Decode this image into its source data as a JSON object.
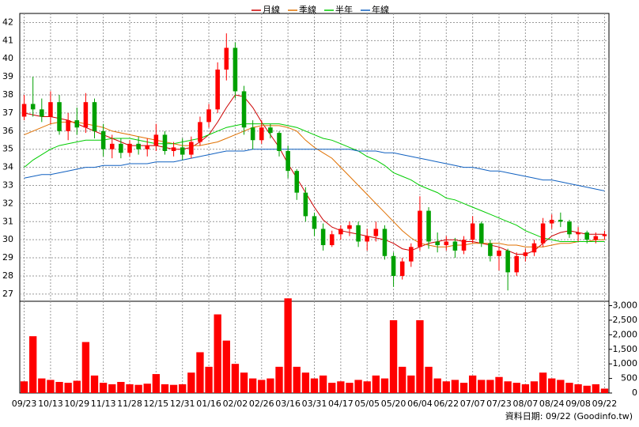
{
  "chart_data": {
    "type": "candlestick",
    "note": "資料日期: 09/22 (Goodinfo.tw)",
    "categories": [
      "09/23",
      null,
      null,
      "10/13",
      null,
      null,
      "10/29",
      null,
      null,
      "11/13",
      null,
      null,
      "11/28",
      null,
      null,
      "12/15",
      null,
      null,
      "12/31",
      null,
      null,
      "01/16",
      null,
      null,
      "02/02",
      null,
      null,
      "02/26",
      null,
      null,
      "03/16",
      null,
      null,
      "03/31",
      null,
      null,
      "04/17",
      null,
      null,
      "05/05",
      null,
      null,
      "05/20",
      null,
      null,
      "06/04",
      null,
      null,
      "06/22",
      null,
      null,
      "07/07",
      null,
      null,
      "07/23",
      null,
      null,
      "08/07",
      null,
      null,
      "08/24",
      null,
      null,
      "09/08",
      null,
      null,
      "09/22"
    ],
    "ohlc": [
      [
        36.8,
        38.0,
        36.6,
        37.5
      ],
      [
        37.5,
        39.0,
        36.8,
        37.2
      ],
      [
        37.2,
        37.8,
        36.5,
        36.8
      ],
      [
        36.8,
        38.2,
        36.4,
        37.6
      ],
      [
        37.6,
        38.0,
        35.8,
        36.0
      ],
      [
        36.0,
        37.0,
        35.5,
        36.6
      ],
      [
        36.6,
        37.3,
        35.8,
        36.2
      ],
      [
        36.2,
        38.1,
        35.9,
        37.6
      ],
      [
        37.6,
        37.8,
        35.6,
        36.0
      ],
      [
        36.0,
        36.4,
        34.6,
        35.0
      ],
      [
        35.0,
        35.8,
        34.5,
        35.3
      ],
      [
        35.3,
        35.6,
        34.5,
        34.8
      ],
      [
        34.8,
        35.5,
        34.6,
        35.3
      ],
      [
        35.3,
        35.7,
        34.7,
        35.0
      ],
      [
        35.0,
        35.6,
        34.6,
        35.2
      ],
      [
        35.2,
        36.4,
        34.9,
        35.8
      ],
      [
        35.8,
        36.0,
        34.7,
        34.9
      ],
      [
        34.9,
        35.4,
        34.6,
        35.1
      ],
      [
        35.1,
        35.6,
        34.4,
        34.7
      ],
      [
        34.7,
        35.7,
        34.5,
        35.4
      ],
      [
        35.4,
        36.8,
        35.2,
        36.5
      ],
      [
        36.5,
        37.5,
        36.2,
        37.2
      ],
      [
        37.2,
        39.8,
        37.0,
        39.4
      ],
      [
        39.4,
        41.4,
        38.8,
        40.6
      ],
      [
        40.6,
        40.9,
        37.8,
        38.2
      ],
      [
        38.2,
        38.5,
        35.8,
        36.2
      ],
      [
        36.2,
        36.6,
        35.0,
        35.5
      ],
      [
        35.5,
        36.6,
        35.3,
        36.2
      ],
      [
        36.2,
        36.4,
        35.6,
        35.9
      ],
      [
        35.9,
        36.0,
        34.6,
        34.9
      ],
      [
        34.9,
        35.2,
        33.4,
        33.8
      ],
      [
        33.8,
        33.9,
        32.2,
        32.6
      ],
      [
        32.6,
        32.9,
        31.0,
        31.3
      ],
      [
        31.3,
        31.5,
        30.2,
        30.6
      ],
      [
        30.6,
        30.9,
        29.4,
        29.7
      ],
      [
        29.7,
        30.5,
        29.6,
        30.3
      ],
      [
        30.3,
        30.8,
        30.0,
        30.6
      ],
      [
        30.6,
        31.0,
        30.2,
        30.8
      ],
      [
        30.8,
        31.0,
        29.6,
        29.9
      ],
      [
        29.9,
        30.6,
        29.4,
        30.2
      ],
      [
        30.2,
        31.0,
        29.9,
        30.6
      ],
      [
        30.6,
        30.8,
        28.9,
        29.1
      ],
      [
        29.1,
        29.3,
        27.4,
        28.0
      ],
      [
        28.0,
        29.0,
        27.8,
        28.8
      ],
      [
        28.8,
        29.8,
        28.5,
        29.6
      ],
      [
        29.6,
        32.4,
        29.4,
        31.6
      ],
      [
        31.6,
        31.8,
        29.5,
        29.9
      ],
      [
        29.9,
        30.4,
        29.3,
        29.7
      ],
      [
        29.7,
        30.2,
        29.4,
        29.9
      ],
      [
        29.9,
        30.1,
        29.0,
        29.4
      ],
      [
        29.4,
        30.2,
        29.2,
        30.0
      ],
      [
        30.0,
        31.3,
        29.8,
        30.9
      ],
      [
        30.9,
        31.0,
        29.6,
        29.8
      ],
      [
        29.8,
        30.0,
        28.8,
        29.1
      ],
      [
        29.1,
        29.6,
        28.3,
        29.4
      ],
      [
        29.4,
        29.5,
        27.2,
        28.2
      ],
      [
        28.2,
        29.3,
        28.0,
        29.1
      ],
      [
        29.1,
        29.5,
        28.8,
        29.3
      ],
      [
        29.3,
        30.0,
        29.1,
        29.8
      ],
      [
        29.8,
        31.2,
        29.6,
        30.9
      ],
      [
        30.9,
        31.4,
        30.6,
        31.1
      ],
      [
        31.1,
        31.5,
        30.7,
        31.0
      ],
      [
        31.0,
        31.1,
        30.1,
        30.3
      ],
      [
        30.3,
        30.7,
        29.9,
        30.4
      ],
      [
        30.4,
        30.5,
        29.8,
        30.0
      ],
      [
        30.0,
        30.4,
        29.8,
        30.2
      ],
      [
        30.2,
        30.5,
        30.0,
        30.3
      ]
    ],
    "up_color": "#ff0000",
    "down_color": "#00a000",
    "volume": [
      400,
      1950,
      500,
      450,
      380,
      350,
      420,
      1750,
      600,
      350,
      300,
      380,
      300,
      280,
      320,
      650,
      300,
      280,
      300,
      700,
      1400,
      900,
      2700,
      1800,
      1000,
      700,
      500,
      450,
      500,
      900,
      3250,
      900,
      700,
      500,
      600,
      350,
      400,
      350,
      450,
      400,
      600,
      500,
      2500,
      900,
      600,
      2500,
      900,
      500,
      400,
      450,
      350,
      600,
      450,
      450,
      550,
      400,
      350,
      300,
      400,
      700,
      500,
      450,
      350,
      300,
      250,
      300,
      150
    ],
    "volume_color": "#ff0000",
    "series": [
      {
        "name": "月線",
        "color": "#cc0000",
        "values": [
          37.0,
          36.9,
          36.8,
          36.8,
          36.7,
          36.6,
          36.4,
          36.2,
          36.0,
          35.8,
          35.6,
          35.4,
          35.2,
          35.2,
          35.2,
          35.2,
          35.1,
          35.0,
          35.0,
          35.1,
          35.4,
          35.8,
          36.5,
          37.3,
          38.0,
          37.9,
          37.3,
          36.5,
          35.8,
          35.1,
          34.2,
          33.4,
          32.6,
          31.8,
          31.1,
          30.7,
          30.5,
          30.4,
          30.3,
          30.2,
          30.1,
          30.0,
          29.8,
          29.5,
          29.4,
          29.6,
          29.8,
          29.9,
          30.0,
          30.0,
          29.9,
          29.9,
          29.8,
          29.7,
          29.6,
          29.4,
          29.2,
          29.2,
          29.4,
          29.8,
          30.2,
          30.4,
          30.5,
          30.4,
          30.3,
          30.3,
          30.3
        ]
      },
      {
        "name": "季線",
        "color": "#e07000",
        "values": [
          35.8,
          36.0,
          36.2,
          36.4,
          36.5,
          36.5,
          36.5,
          36.4,
          36.3,
          36.2,
          36.0,
          35.9,
          35.8,
          35.7,
          35.6,
          35.5,
          35.4,
          35.3,
          35.2,
          35.2,
          35.2,
          35.3,
          35.4,
          35.6,
          35.8,
          36.0,
          36.2,
          36.3,
          36.3,
          36.3,
          36.2,
          36.0,
          35.5,
          35.1,
          34.8,
          34.5,
          34.0,
          33.5,
          33.0,
          32.5,
          32.0,
          31.5,
          31.0,
          30.5,
          30.1,
          29.8,
          29.7,
          29.6,
          29.6,
          29.7,
          29.7,
          29.8,
          29.8,
          29.8,
          29.8,
          29.7,
          29.7,
          29.6,
          29.6,
          29.6,
          29.7,
          29.8,
          29.8,
          29.9,
          29.9,
          30.0,
          30.0
        ]
      },
      {
        "name": "半年",
        "color": "#00cc00",
        "values": [
          34.0,
          34.4,
          34.7,
          35.0,
          35.2,
          35.3,
          35.4,
          35.5,
          35.5,
          35.5,
          35.6,
          35.6,
          35.6,
          35.5,
          35.4,
          35.3,
          35.3,
          35.3,
          35.4,
          35.5,
          35.6,
          35.8,
          36.0,
          36.2,
          36.3,
          36.4,
          36.4,
          36.4,
          36.4,
          36.4,
          36.3,
          36.2,
          36.0,
          35.8,
          35.6,
          35.5,
          35.3,
          35.1,
          34.9,
          34.6,
          34.4,
          34.1,
          33.7,
          33.5,
          33.3,
          33.0,
          32.8,
          32.6,
          32.3,
          32.2,
          32.0,
          31.8,
          31.6,
          31.4,
          31.2,
          31.0,
          30.8,
          30.5,
          30.3,
          30.1,
          30.0,
          29.9,
          29.9,
          29.9,
          29.9,
          29.9,
          29.9
        ]
      },
      {
        "name": "年線",
        "color": "#1060c0",
        "values": [
          33.4,
          33.5,
          33.6,
          33.6,
          33.7,
          33.8,
          33.9,
          34.0,
          34.0,
          34.1,
          34.1,
          34.1,
          34.2,
          34.2,
          34.2,
          34.3,
          34.3,
          34.3,
          34.4,
          34.5,
          34.6,
          34.7,
          34.8,
          34.9,
          34.9,
          34.9,
          35.0,
          35.0,
          35.0,
          35.0,
          35.0,
          35.0,
          35.0,
          35.0,
          35.0,
          35.0,
          35.0,
          35.0,
          34.9,
          34.9,
          34.9,
          34.8,
          34.8,
          34.7,
          34.6,
          34.5,
          34.4,
          34.3,
          34.2,
          34.1,
          34.0,
          34.0,
          33.9,
          33.8,
          33.8,
          33.7,
          33.6,
          33.5,
          33.4,
          33.3,
          33.3,
          33.2,
          33.1,
          33.0,
          32.9,
          32.8,
          32.7
        ]
      }
    ],
    "ylim": [
      26.6,
      42.5
    ],
    "yticks": [
      27,
      28,
      29,
      30,
      31,
      32,
      33,
      34,
      35,
      36,
      37,
      38,
      39,
      40,
      41,
      42
    ],
    "y2lim": [
      0,
      3150
    ],
    "y2ticks": [
      0,
      500,
      {
        "value": 1000,
        "label": "1,000"
      },
      {
        "value": 1500,
        "label": "1,500"
      },
      {
        "value": 2000,
        "label": "2,000"
      },
      {
        "value": 2500,
        "label": "2,500"
      },
      {
        "value": 3000,
        "label": "3,000"
      }
    ],
    "grid": true,
    "legend": "top"
  }
}
